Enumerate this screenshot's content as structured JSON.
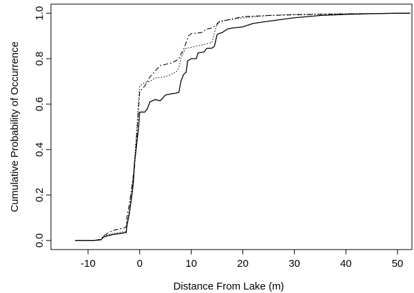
{
  "chart_data": {
    "type": "line",
    "xlabel": "Distance From Lake (m)",
    "ylabel": "Cumulative Probability of Occurrence",
    "xlim": [
      -17.2,
      52.8
    ],
    "ylim": [
      -0.04,
      1.04
    ],
    "xticks": [
      -10,
      0,
      10,
      20,
      30,
      40,
      50
    ],
    "yticks": [
      0.0,
      0.2,
      0.4,
      0.6,
      0.8,
      1.0
    ],
    "xtick_labels": [
      "-10",
      "0",
      "10",
      "20",
      "30",
      "40",
      "50"
    ],
    "ytick_labels": [
      "0.0",
      "0.2",
      "0.4",
      "0.6",
      "0.8",
      "1.0"
    ],
    "grid": false,
    "series": [
      {
        "style": "solid",
        "color": "#000000",
        "points": [
          [
            -12.5,
            0.0
          ],
          [
            -9,
            0.0
          ],
          [
            -7.5,
            0.003
          ],
          [
            -7,
            0.015
          ],
          [
            -6,
            0.022
          ],
          [
            -5,
            0.027
          ],
          [
            -4,
            0.03
          ],
          [
            -2.6,
            0.035
          ],
          [
            -2.5,
            0.06
          ],
          [
            -2,
            0.12
          ],
          [
            -1.5,
            0.2
          ],
          [
            -1.2,
            0.26
          ],
          [
            -1,
            0.34
          ],
          [
            -0.6,
            0.42
          ],
          [
            -0.2,
            0.5
          ],
          [
            0,
            0.565
          ],
          [
            1,
            0.565
          ],
          [
            1.5,
            0.58
          ],
          [
            2,
            0.61
          ],
          [
            3,
            0.62
          ],
          [
            4,
            0.615
          ],
          [
            5,
            0.64
          ],
          [
            6,
            0.645
          ],
          [
            7,
            0.648
          ],
          [
            7.6,
            0.652
          ],
          [
            8,
            0.7
          ],
          [
            8.5,
            0.73
          ],
          [
            9,
            0.74
          ],
          [
            9.3,
            0.79
          ],
          [
            10,
            0.8
          ],
          [
            11,
            0.8
          ],
          [
            11.3,
            0.825
          ],
          [
            12.5,
            0.83
          ],
          [
            13,
            0.845
          ],
          [
            14,
            0.846
          ],
          [
            14.5,
            0.855
          ],
          [
            15,
            0.905
          ],
          [
            15.3,
            0.91
          ],
          [
            16,
            0.915
          ],
          [
            17,
            0.93
          ],
          [
            18,
            0.935
          ],
          [
            20,
            0.94
          ],
          [
            22,
            0.955
          ],
          [
            25,
            0.965
          ],
          [
            30,
            0.98
          ],
          [
            35,
            0.99
          ],
          [
            40,
            0.995
          ],
          [
            45,
            0.998
          ],
          [
            50,
            1.0
          ],
          [
            52.5,
            1.0
          ]
        ]
      },
      {
        "style": "dashed",
        "color": "#000000",
        "points": [
          [
            -12.5,
            0.0
          ],
          [
            -9,
            0.0
          ],
          [
            -7.5,
            0.005
          ],
          [
            -7,
            0.02
          ],
          [
            -6,
            0.035
          ],
          [
            -5,
            0.045
          ],
          [
            -3,
            0.055
          ],
          [
            -2.6,
            0.06
          ],
          [
            -2.5,
            0.1
          ],
          [
            -2,
            0.16
          ],
          [
            -1.5,
            0.24
          ],
          [
            -1,
            0.32
          ],
          [
            -0.6,
            0.45
          ],
          [
            -0.3,
            0.55
          ],
          [
            0,
            0.655
          ],
          [
            1,
            0.68
          ],
          [
            2,
            0.72
          ],
          [
            3,
            0.745
          ],
          [
            4,
            0.77
          ],
          [
            5,
            0.775
          ],
          [
            6,
            0.78
          ],
          [
            7,
            0.79
          ],
          [
            7.6,
            0.8
          ],
          [
            8,
            0.82
          ],
          [
            8.5,
            0.84
          ],
          [
            9,
            0.87
          ],
          [
            9.5,
            0.9
          ],
          [
            10,
            0.91
          ],
          [
            12,
            0.915
          ],
          [
            13,
            0.93
          ],
          [
            14,
            0.935
          ],
          [
            15,
            0.95
          ],
          [
            15.3,
            0.96
          ],
          [
            16,
            0.965
          ],
          [
            18,
            0.975
          ],
          [
            20,
            0.985
          ],
          [
            25,
            0.99
          ],
          [
            30,
            0.993
          ],
          [
            40,
            0.997
          ],
          [
            52.5,
            1.0
          ]
        ]
      },
      {
        "style": "dotted",
        "color": "#000000",
        "points": [
          [
            -12.5,
            0.0
          ],
          [
            -9,
            0.0
          ],
          [
            -7.5,
            0.003
          ],
          [
            -7,
            0.02
          ],
          [
            -6,
            0.025
          ],
          [
            -4,
            0.035
          ],
          [
            -2.6,
            0.04
          ],
          [
            -2.5,
            0.07
          ],
          [
            -2,
            0.13
          ],
          [
            -1.5,
            0.22
          ],
          [
            -1,
            0.35
          ],
          [
            -0.7,
            0.45
          ],
          [
            -0.3,
            0.58
          ],
          [
            0,
            0.68
          ],
          [
            1,
            0.695
          ],
          [
            2,
            0.7
          ],
          [
            3,
            0.715
          ],
          [
            5,
            0.72
          ],
          [
            6,
            0.73
          ],
          [
            7,
            0.74
          ],
          [
            7.6,
            0.76
          ],
          [
            8,
            0.8
          ],
          [
            8.5,
            0.83
          ],
          [
            9,
            0.845
          ],
          [
            10,
            0.85
          ],
          [
            12,
            0.86
          ],
          [
            14,
            0.87
          ],
          [
            15,
            0.955
          ],
          [
            15.5,
            0.965
          ],
          [
            17,
            0.97
          ],
          [
            20,
            0.98
          ],
          [
            25,
            0.99
          ],
          [
            30,
            0.995
          ],
          [
            40,
            0.998
          ],
          [
            52.5,
            1.0
          ]
        ]
      }
    ]
  }
}
